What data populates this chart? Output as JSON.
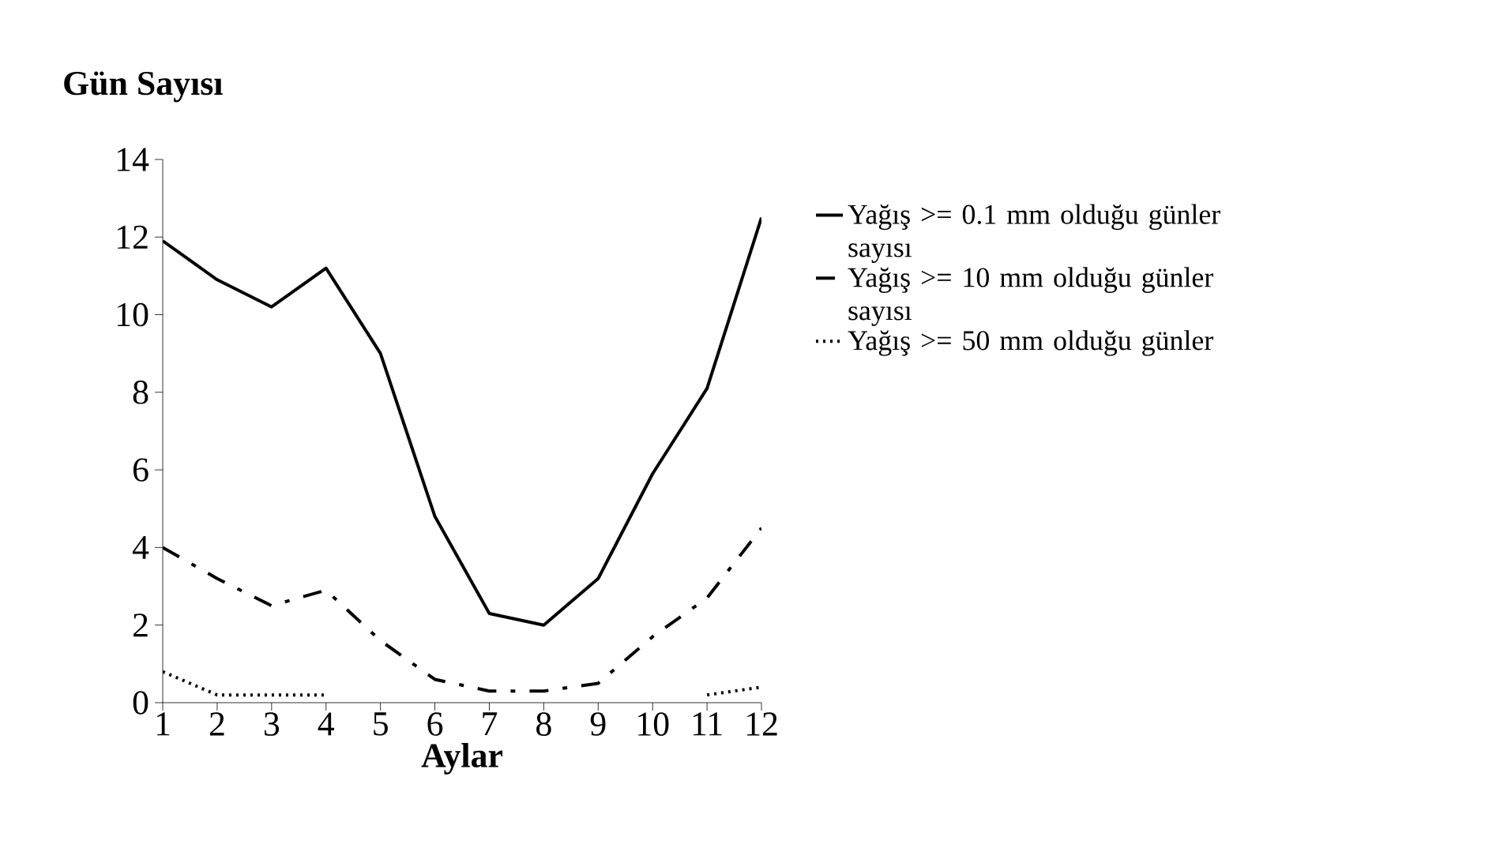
{
  "chart_data": {
    "type": "line",
    "ylabel": "Gün Sayısı",
    "xlabel": "Aylar",
    "x": [
      1,
      2,
      3,
      4,
      5,
      6,
      7,
      8,
      9,
      10,
      11,
      12
    ],
    "xlim": [
      1,
      12
    ],
    "xticks": [
      1,
      2,
      3,
      4,
      5,
      6,
      7,
      8,
      9,
      10,
      11,
      12
    ],
    "ylim": [
      0,
      14
    ],
    "yticks": [
      0,
      2,
      4,
      6,
      8,
      10,
      12,
      14
    ],
    "legend": "right",
    "grid": false,
    "marker": "none",
    "series": [
      {
        "name": "Yağış >= 0.1 mm olduğu günler sayısı",
        "color": "#000000",
        "line_style": "solid",
        "values": [
          11.9,
          10.9,
          10.2,
          11.2,
          9.0,
          4.8,
          2.3,
          2.0,
          3.2,
          5.9,
          8.1,
          12.5
        ]
      },
      {
        "name": "Yağış >= 10 mm olduğu günler sayısı",
        "color": "#000000",
        "line_style": "dashdot",
        "values": [
          4.0,
          3.2,
          2.5,
          2.9,
          1.6,
          0.6,
          0.3,
          0.3,
          0.5,
          1.7,
          2.7,
          4.5
        ]
      },
      {
        "name": "Yağış >= 50 mm olduğu günler",
        "color": "#000000",
        "line_style": "dotted",
        "values": [
          0.8,
          0.2,
          0.2,
          0.2,
          null,
          null,
          null,
          null,
          null,
          null,
          0.2,
          0.4
        ]
      }
    ]
  }
}
